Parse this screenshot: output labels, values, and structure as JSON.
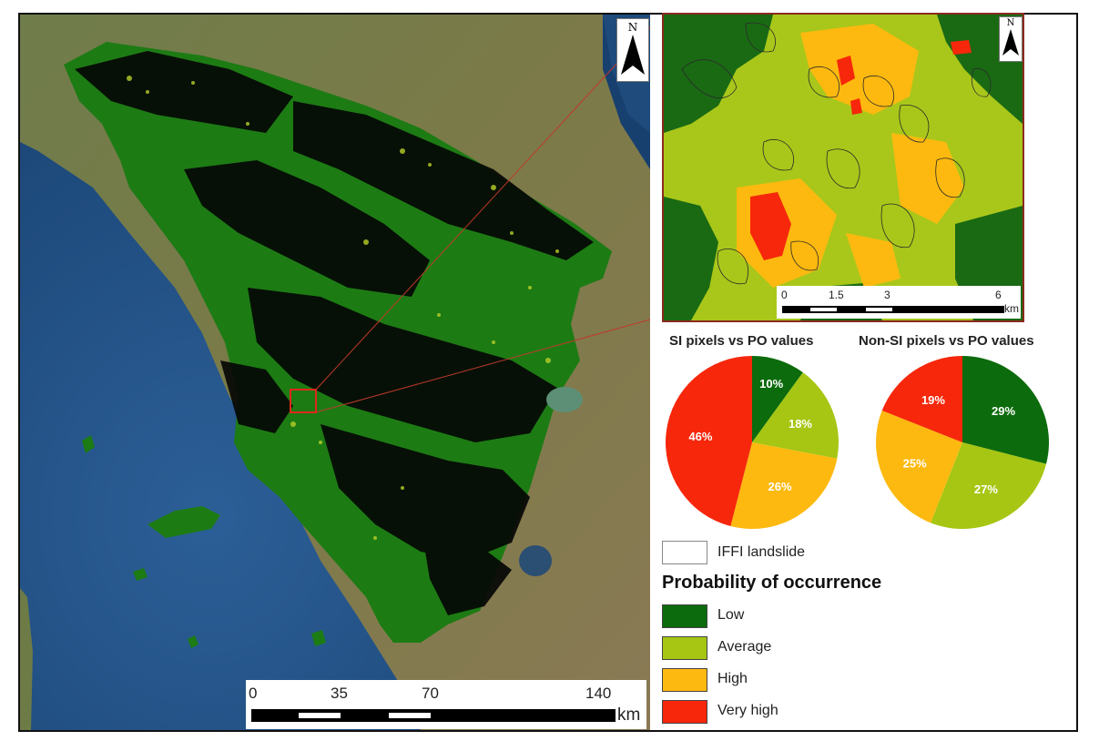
{
  "main_map": {
    "north_label": "N",
    "scale_ticks": [
      "0",
      "35",
      "70",
      "140"
    ],
    "scale_unit": "km"
  },
  "inset_map": {
    "north_label": "N",
    "scale_ticks": [
      "0",
      "1.5",
      "3",
      "6"
    ],
    "scale_unit": "km"
  },
  "pies": [
    {
      "title": "SI pixels vs PO values",
      "slices": [
        {
          "category": "Low",
          "value": 10,
          "label": "10%"
        },
        {
          "category": "Average",
          "value": 18,
          "label": "18%"
        },
        {
          "category": "High",
          "value": 26,
          "label": "26%"
        },
        {
          "category": "Very high",
          "value": 46,
          "label": "46%"
        }
      ]
    },
    {
      "title": "Non-SI pixels vs PO values",
      "slices": [
        {
          "category": "Low",
          "value": 29,
          "label": "29%"
        },
        {
          "category": "Average",
          "value": 27,
          "label": "27%"
        },
        {
          "category": "High",
          "value": 25,
          "label": "25%"
        },
        {
          "category": "Very high",
          "value": 19,
          "label": "19%"
        }
      ]
    }
  ],
  "legend": {
    "landslide_label": "IFFI landslide",
    "title": "Probability of occurrence",
    "items": [
      {
        "label": "Low",
        "color": "#0c6b0c"
      },
      {
        "label": "Average",
        "color": "#a6c613"
      },
      {
        "label": "High",
        "color": "#fdb90f"
      },
      {
        "label": "Very high",
        "color": "#f6270b"
      }
    ]
  },
  "colors": {
    "sea": "#1f4f86",
    "land": "#6c7a3b",
    "region": "#1d7b14",
    "dark_patches": "#050705",
    "inset_border": "#8b2a1e"
  }
}
